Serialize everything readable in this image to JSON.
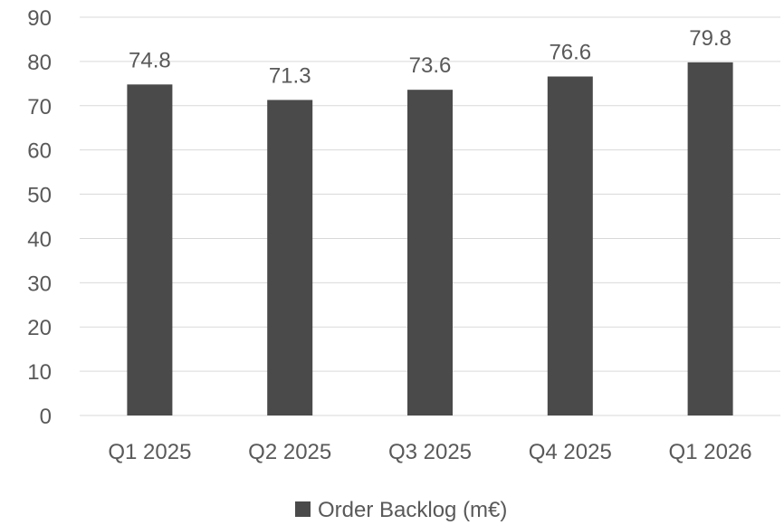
{
  "chart_data": {
    "type": "bar",
    "categories": [
      "Q1 2025",
      "Q2 2025",
      "Q3 2025",
      "Q4 2025",
      "Q1 2026"
    ],
    "series": [
      {
        "name": "Order Backlog (m€)",
        "values": [
          74.8,
          71.3,
          73.6,
          76.6,
          79.8
        ],
        "color": "#4a4a4a"
      }
    ],
    "title": "",
    "xlabel": "",
    "ylabel": "",
    "ylim": [
      0,
      90
    ],
    "yticks": [
      0,
      10,
      20,
      30,
      40,
      50,
      60,
      70,
      80,
      90
    ],
    "grid": true,
    "data_labels": true,
    "legend": "bottom"
  }
}
